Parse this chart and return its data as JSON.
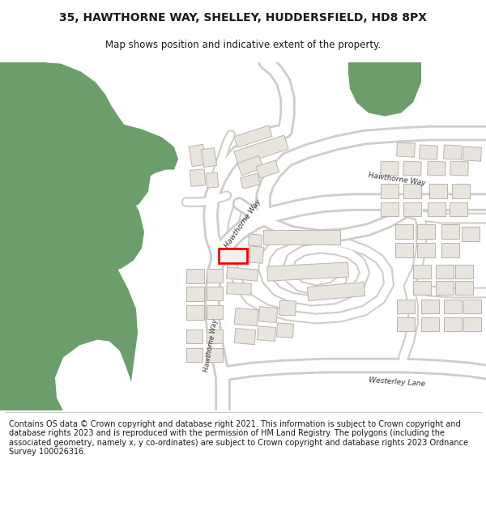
{
  "title_line1": "35, HAWTHORNE WAY, SHELLEY, HUDDERSFIELD, HD8 8PX",
  "title_line2": "Map shows position and indicative extent of the property.",
  "footer_text": "Contains OS data © Crown copyright and database right 2021. This information is subject to Crown copyright and database rights 2023 and is reproduced with the permission of HM Land Registry. The polygons (including the associated geometry, namely x, y co-ordinates) are subject to Crown copyright and database rights 2023 Ordnance Survey 100026316.",
  "bg_color": "#ffffff",
  "map_bg": "#ffffff",
  "green_color": "#6b9e6b",
  "building_fill": "#e8e4de",
  "building_edge": "#b8b4ae",
  "road_fill": "#ffffff",
  "road_edge": "#d0ccc8",
  "highlight_color": "#ff0000",
  "text_color": "#1a1a1a",
  "road_label_color": "#333333",
  "title_fontsize": 10,
  "subtitle_fontsize": 8.5,
  "footer_fontsize": 7.0
}
